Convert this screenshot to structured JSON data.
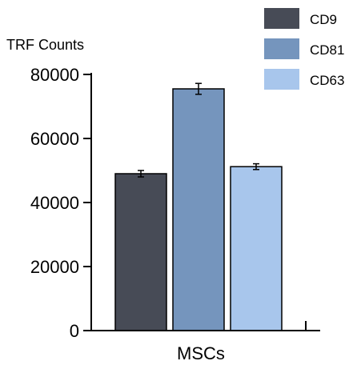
{
  "chart_data": {
    "type": "bar",
    "title": "",
    "ylabel": "TRF Counts",
    "xlabel": "",
    "categories": [
      "MSCs"
    ],
    "ylim": [
      0,
      80000
    ],
    "yticks": [
      0,
      20000,
      40000,
      60000,
      80000
    ],
    "grid": false,
    "legend_position": "top-right",
    "error_bars": true,
    "series": [
      {
        "name": "CD9",
        "values": [
          49000
        ],
        "errors": [
          1000
        ],
        "color": "#474b56"
      },
      {
        "name": "CD81",
        "values": [
          75500
        ],
        "errors": [
          1700
        ],
        "color": "#7595bd"
      },
      {
        "name": "CD63",
        "values": [
          51200
        ],
        "errors": [
          900
        ],
        "color": "#a8c6ec"
      }
    ]
  }
}
